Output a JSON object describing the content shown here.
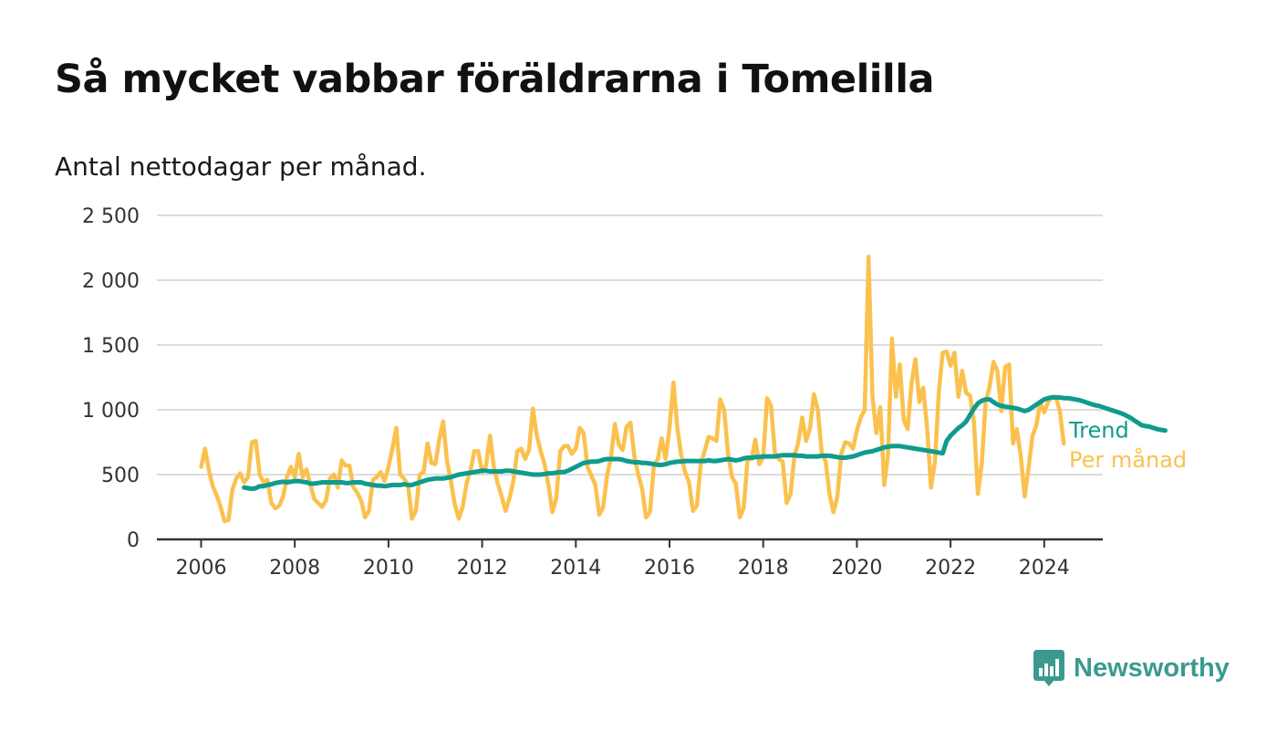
{
  "colors": {
    "monthly": "#fbc14e",
    "trend": "#0f9b8e",
    "grid": "#dcdcdc",
    "axis": "#333333",
    "brand": "#3a9a8e"
  },
  "brand": {
    "name": "Newsworthy",
    "icon": "bar-chart-badge-icon"
  },
  "chart_data": {
    "type": "line",
    "title": "Så mycket vabbar föräldrarna i Tomelilla",
    "subtitle": "Antal nettodagar per månad.",
    "xlabel": "",
    "ylabel": "",
    "ylim": [
      0,
      2500
    ],
    "xlim": [
      "2005-01",
      "2025-06"
    ],
    "yticks": [
      0,
      500,
      1000,
      1500,
      2000,
      2500
    ],
    "ytick_labels": [
      "0",
      "500",
      "1 000",
      "1 500",
      "2 000",
      "2 500"
    ],
    "xticks": [
      "2006",
      "2008",
      "2010",
      "2012",
      "2014",
      "2016",
      "2018",
      "2020",
      "2022",
      "2024"
    ],
    "grid": true,
    "legend": "end-of-line labels",
    "series": [
      {
        "name": "Per månad",
        "start": "2006-01",
        "values": [
          560,
          700,
          530,
          410,
          340,
          250,
          140,
          150,
          380,
          470,
          510,
          440,
          480,
          750,
          760,
          500,
          440,
          460,
          280,
          240,
          260,
          330,
          480,
          560,
          480,
          660,
          480,
          540,
          420,
          310,
          280,
          250,
          300,
          470,
          500,
          400,
          610,
          570,
          570,
          400,
          360,
          300,
          170,
          220,
          460,
          480,
          520,
          450,
          560,
          700,
          860,
          500,
          470,
          420,
          160,
          220,
          500,
          520,
          740,
          590,
          580,
          770,
          910,
          600,
          450,
          270,
          160,
          250,
          430,
          530,
          680,
          680,
          520,
          570,
          800,
          560,
          430,
          330,
          220,
          320,
          450,
          680,
          700,
          620,
          690,
          1010,
          800,
          680,
          580,
          420,
          210,
          320,
          680,
          720,
          720,
          660,
          700,
          860,
          820,
          560,
          490,
          420,
          190,
          250,
          490,
          630,
          890,
          730,
          690,
          870,
          900,
          640,
          500,
          390,
          170,
          210,
          570,
          620,
          780,
          620,
          860,
          1210,
          860,
          650,
          520,
          440,
          220,
          260,
          580,
          680,
          790,
          780,
          760,
          1080,
          1000,
          660,
          480,
          430,
          170,
          240,
          620,
          620,
          770,
          580,
          630,
          1090,
          1030,
          670,
          620,
          600,
          280,
          350,
          640,
          750,
          940,
          760,
          860,
          1120,
          1000,
          670,
          600,
          350,
          210,
          330,
          660,
          750,
          740,
          700,
          840,
          940,
          1000,
          2180,
          1100,
          820,
          1020,
          420,
          660,
          1550,
          1100,
          1350,
          920,
          850,
          1200,
          1390,
          1060,
          1170,
          860,
          400,
          600,
          1140,
          1440,
          1450,
          1340,
          1440,
          1100,
          1300,
          1130,
          1110,
          900,
          350,
          580,
          1060,
          1180,
          1370,
          1300,
          990,
          1330,
          1350,
          740,
          850,
          640,
          330,
          560,
          800,
          880,
          1060,
          980,
          1060,
          1100,
          1100,
          990,
          740
        ]
      },
      {
        "name": "Trend",
        "start": "2006-12",
        "values": [
          400,
          395,
          390,
          395,
          410,
          410,
          420,
          425,
          435,
          440,
          445,
          440,
          445,
          450,
          450,
          445,
          440,
          430,
          430,
          435,
          440,
          440,
          440,
          440,
          440,
          440,
          435,
          435,
          440,
          440,
          440,
          430,
          425,
          420,
          415,
          415,
          410,
          415,
          420,
          420,
          420,
          425,
          420,
          420,
          430,
          440,
          450,
          460,
          465,
          470,
          470,
          470,
          475,
          480,
          490,
          500,
          505,
          510,
          515,
          520,
          525,
          530,
          530,
          525,
          525,
          525,
          525,
          530,
          530,
          525,
          520,
          515,
          510,
          505,
          500,
          500,
          500,
          505,
          510,
          510,
          515,
          520,
          520,
          530,
          545,
          560,
          575,
          590,
          595,
          600,
          600,
          605,
          615,
          620,
          620,
          620,
          620,
          615,
          605,
          600,
          595,
          595,
          590,
          590,
          585,
          580,
          575,
          575,
          580,
          590,
          595,
          600,
          600,
          605,
          605,
          605,
          605,
          605,
          605,
          610,
          605,
          605,
          610,
          615,
          620,
          615,
          610,
          615,
          625,
          630,
          630,
          635,
          635,
          640,
          640,
          640,
          640,
          645,
          650,
          650,
          650,
          650,
          645,
          645,
          640,
          640,
          640,
          640,
          645,
          645,
          645,
          640,
          635,
          630,
          630,
          635,
          640,
          650,
          660,
          670,
          675,
          680,
          690,
          700,
          710,
          715,
          720,
          720,
          720,
          715,
          710,
          705,
          700,
          695,
          690,
          685,
          680,
          675,
          670,
          665,
          760,
          800,
          830,
          860,
          880,
          910,
          960,
          1010,
          1050,
          1070,
          1080,
          1080,
          1060,
          1040,
          1030,
          1025,
          1020,
          1015,
          1010,
          1000,
          990,
          1000,
          1020,
          1040,
          1060,
          1080,
          1090,
          1095,
          1095,
          1095,
          1090,
          1090,
          1085,
          1080,
          1075,
          1065,
          1055,
          1045,
          1035,
          1030,
          1020,
          1010,
          1000,
          990,
          980,
          970,
          955,
          940,
          920,
          900,
          880,
          875,
          870,
          860,
          850,
          845,
          840
        ]
      }
    ]
  }
}
